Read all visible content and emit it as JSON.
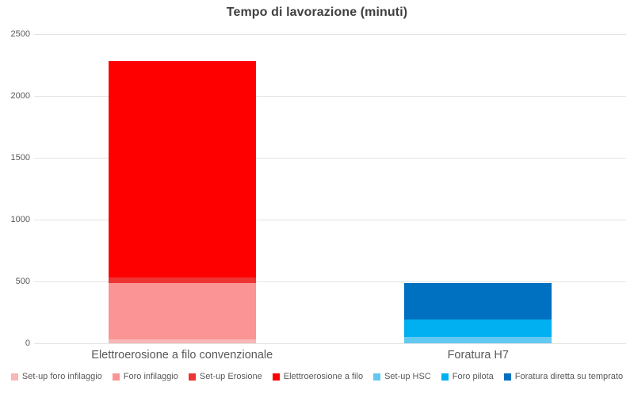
{
  "title": "Tempo di lavorazione (minuti)",
  "colors": {
    "background": "#ffffff",
    "title_text": "#3f3f3f",
    "axis_text": "#595959",
    "gridline": "#e4e4e4"
  },
  "chart_data": {
    "type": "bar",
    "stacked": true,
    "title": "Tempo di lavorazione (minuti)",
    "categories": [
      "Elettroerosione a filo convenzionale",
      "Foratura H7"
    ],
    "series": [
      {
        "name": "Set-up foro infilaggio",
        "color": "#F8B6B6",
        "values": [
          30,
          0
        ]
      },
      {
        "name": "Foro infilaggio",
        "color": "#FB9494",
        "values": [
          460,
          0
        ]
      },
      {
        "name": "Set-up Erosione",
        "color": "#EE3333",
        "values": [
          40,
          0
        ]
      },
      {
        "name": "Elettroerosione a filo",
        "color": "#FF0000",
        "values": [
          1750,
          0
        ]
      },
      {
        "name": "Set-up HSC",
        "color": "#62C9F1",
        "values": [
          0,
          50
        ]
      },
      {
        "name": "Foro pilota",
        "color": "#00B0F0",
        "values": [
          0,
          140
        ]
      },
      {
        "name": "Foratura diretta su temprato",
        "color": "#0070C0",
        "values": [
          0,
          295
        ]
      }
    ],
    "ylabel": "",
    "xlabel": "",
    "ylim": [
      0,
      2500
    ],
    "yticks": [
      0,
      500,
      1000,
      1500,
      2000,
      2500
    ],
    "grid": true,
    "legend_position": "bottom",
    "category_totals": [
      2280,
      485
    ]
  }
}
